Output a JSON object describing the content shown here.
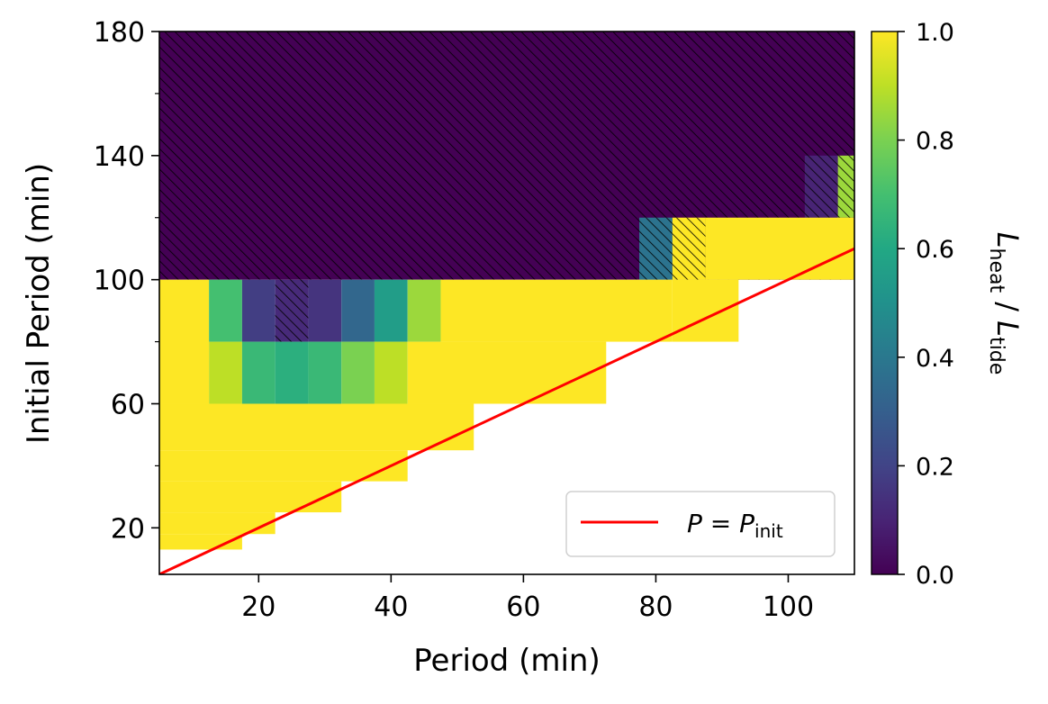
{
  "chart_data": {
    "type": "heatmap",
    "xlabel": "Period (min)",
    "ylabel": "Initial Period (min)",
    "xlim": [
      5,
      110
    ],
    "ylim": [
      5,
      180
    ],
    "xticks": [
      20,
      40,
      60,
      80,
      100
    ],
    "yticks": [
      20,
      60,
      100,
      140,
      180
    ],
    "yminor_ticks": [
      40,
      80,
      120,
      160
    ],
    "cell_width": 5,
    "colorbar": {
      "label_main": "L",
      "label_sub1": "heat",
      "label_sep": " / ",
      "label_main2": "L",
      "label_sub2": "tide",
      "min": 0,
      "max": 1,
      "ticks": [
        "0.0",
        "0.2",
        "0.4",
        "0.6",
        "0.8",
        "1.0"
      ],
      "colormap": "viridis"
    },
    "legend": {
      "placement": "lower-right",
      "entries": [
        {
          "label_main": "P = P",
          "label_sub": "init",
          "color": "#ff0000"
        }
      ]
    },
    "reference_line": {
      "slope": 1,
      "intercept": 0,
      "color": "#ff0000"
    },
    "hatch_meaning": "hatched",
    "cells": [
      {
        "x": [
          5,
          110
        ],
        "y": [
          100,
          180
        ],
        "value": 0.0,
        "hatched": true
      },
      {
        "x": [
          77.5,
          82.5
        ],
        "y": [
          100,
          120
        ],
        "value": 0.38,
        "hatched": true
      },
      {
        "x": [
          82.5,
          87.5
        ],
        "y": [
          100,
          120
        ],
        "value": 1.0,
        "hatched": true
      },
      {
        "x": [
          102.5,
          107.5
        ],
        "y": [
          120,
          140
        ],
        "value": 0.1,
        "hatched": true
      },
      {
        "x": [
          107.5,
          110
        ],
        "y": [
          120,
          140
        ],
        "value": 0.85,
        "hatched": true
      },
      {
        "x": [
          5,
          12.5
        ],
        "y": [
          60,
          100
        ],
        "value": 1.0,
        "hatched": false
      },
      {
        "x": [
          12.5,
          17.5
        ],
        "y": [
          80,
          100
        ],
        "value": 0.7,
        "hatched": false
      },
      {
        "x": [
          17.5,
          22.5
        ],
        "y": [
          80,
          100
        ],
        "value": 0.18,
        "hatched": false
      },
      {
        "x": [
          22.5,
          27.5
        ],
        "y": [
          80,
          100
        ],
        "value": 0.12,
        "hatched": true
      },
      {
        "x": [
          27.5,
          32.5
        ],
        "y": [
          80,
          100
        ],
        "value": 0.15,
        "hatched": false
      },
      {
        "x": [
          32.5,
          37.5
        ],
        "y": [
          80,
          100
        ],
        "value": 0.33,
        "hatched": false
      },
      {
        "x": [
          37.5,
          42.5
        ],
        "y": [
          80,
          100
        ],
        "value": 0.55,
        "hatched": false
      },
      {
        "x": [
          42.5,
          47.5
        ],
        "y": [
          80,
          100
        ],
        "value": 0.85,
        "hatched": false
      },
      {
        "x": [
          47.5,
          82.5
        ],
        "y": [
          80,
          100
        ],
        "value": 1.0,
        "hatched": false
      },
      {
        "x": [
          82.5,
          92.5
        ],
        "y": [
          80,
          100
        ],
        "value": 1.0,
        "hatched": false
      },
      {
        "x": [
          87.5,
          110
        ],
        "y": [
          100,
          120
        ],
        "value": 1.0,
        "hatched": false
      },
      {
        "x": [
          12.5,
          17.5
        ],
        "y": [
          60,
          80
        ],
        "value": 0.9,
        "hatched": false
      },
      {
        "x": [
          17.5,
          22.5
        ],
        "y": [
          60,
          80
        ],
        "value": 0.67,
        "hatched": false
      },
      {
        "x": [
          22.5,
          27.5
        ],
        "y": [
          60,
          80
        ],
        "value": 0.63,
        "hatched": false
      },
      {
        "x": [
          27.5,
          32.5
        ],
        "y": [
          60,
          80
        ],
        "value": 0.67,
        "hatched": false
      },
      {
        "x": [
          32.5,
          37.5
        ],
        "y": [
          60,
          80
        ],
        "value": 0.8,
        "hatched": false
      },
      {
        "x": [
          37.5,
          42.5
        ],
        "y": [
          60,
          80
        ],
        "value": 0.9,
        "hatched": false
      },
      {
        "x": [
          42.5,
          72.5
        ],
        "y": [
          60,
          80
        ],
        "value": 1.0,
        "hatched": false
      },
      {
        "x": [
          72.5,
          92.5
        ],
        "y": [
          80,
          80
        ],
        "value": 1.0,
        "hatched": false
      },
      {
        "x": [
          5,
          52.5
        ],
        "y": [
          45,
          60
        ],
        "value": 1.0,
        "hatched": false
      },
      {
        "x": [
          5,
          42.5
        ],
        "y": [
          35,
          45
        ],
        "value": 1.0,
        "hatched": false
      },
      {
        "x": [
          5,
          32.5
        ],
        "y": [
          25,
          35
        ],
        "value": 1.0,
        "hatched": false
      },
      {
        "x": [
          5,
          22.5
        ],
        "y": [
          18,
          25
        ],
        "value": 1.0,
        "hatched": false
      },
      {
        "x": [
          5,
          17.5
        ],
        "y": [
          13,
          18
        ],
        "value": 1.0,
        "hatched": false
      }
    ]
  }
}
